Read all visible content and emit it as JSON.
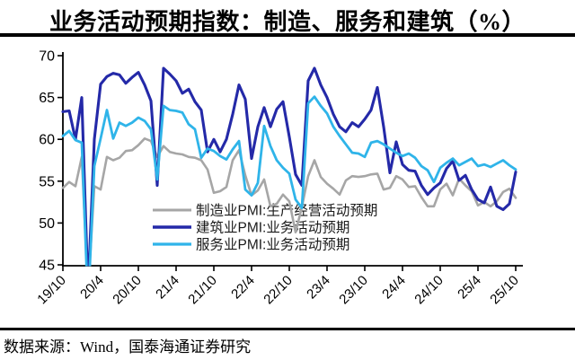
{
  "page": {
    "title": "业务活动预期指数：制造、服务和建筑（%）",
    "source": "数据来源：Wind，国泰海通证券研究"
  },
  "chart_data": {
    "type": "line",
    "title": "业务活动预期指数：制造、服务和建筑（%）",
    "x_start": "2019-10",
    "x_end": "2025-10",
    "x_frequency": "monthly",
    "x_tick_labels": [
      "19/10",
      "20/4",
      "20/10",
      "21/4",
      "21/10",
      "22/4",
      "22/10",
      "23/4",
      "23/10",
      "24/4",
      "24/10",
      "25/4",
      "25/10"
    ],
    "y_ticks": [
      70,
      65,
      60,
      55,
      50,
      45
    ],
    "ylim": [
      45,
      70
    ],
    "grid": false,
    "legend_position": "inside-center-left",
    "axis_color": "#000000",
    "series": [
      {
        "id": "manufacturing",
        "label": "制造业PMI:生产经营活动预期",
        "color": "#A6A6A6",
        "stroke_width": 2.6,
        "values": [
          54.2,
          54.9,
          54.4,
          57.9,
          41.8,
          54.4,
          54.0,
          57.9,
          57.5,
          57.8,
          58.6,
          58.7,
          59.3,
          60.1,
          59.8,
          57.9,
          59.2,
          58.5,
          58.3,
          58.2,
          57.9,
          57.8,
          57.5,
          56.4,
          53.6,
          53.8,
          54.3,
          57.5,
          58.7,
          55.7,
          53.3,
          53.9,
          55.2,
          52.0,
          52.3,
          53.4,
          52.6,
          48.9,
          51.9,
          55.6,
          57.5,
          55.5,
          54.7,
          54.1,
          53.4,
          55.1,
          55.6,
          55.5,
          55.6,
          55.8,
          55.9,
          54.0,
          54.2,
          55.6,
          55.2,
          54.3,
          54.4,
          53.1,
          52.0,
          52.0,
          54.0,
          54.7,
          53.3,
          55.3,
          54.5,
          53.8,
          52.1,
          52.5,
          52.0,
          52.6,
          53.7,
          54.1,
          53.0
        ]
      },
      {
        "id": "construction",
        "label": "建筑业PMI:业务活动预期",
        "color": "#2429A8",
        "stroke_width": 3.1,
        "values": [
          63.3,
          63.4,
          60.0,
          65.0,
          41.8,
          60.0,
          66.6,
          67.5,
          67.9,
          67.7,
          66.7,
          67.4,
          68.0,
          66.5,
          64.6,
          54.5,
          68.5,
          67.8,
          67.0,
          65.5,
          66.0,
          64.5,
          63.5,
          58.5,
          60.0,
          58.5,
          60.0,
          63.0,
          66.5,
          64.8,
          57.7,
          61.5,
          63.8,
          61.5,
          63.6,
          64.5,
          60.3,
          55.8,
          54.5,
          67.0,
          68.5,
          66.5,
          65.0,
          63.0,
          61.5,
          60.9,
          62.0,
          61.5,
          62.4,
          63.5,
          66.2,
          61.5,
          56.0,
          59.7,
          57.0,
          56.3,
          56.2,
          54.5,
          53.4,
          54.2,
          54.8,
          56.5,
          57.4,
          55.1,
          55.7,
          54.0,
          52.8,
          52.4,
          54.3,
          52.0,
          51.6,
          52.3,
          56.1
        ]
      },
      {
        "id": "services",
        "label": "服务业PMI:业务活动预期",
        "color": "#2FB4E9",
        "stroke_width": 2.8,
        "values": [
          60.4,
          61.0,
          59.9,
          59.6,
          40.0,
          56.8,
          60.1,
          63.5,
          60.1,
          62.0,
          61.6,
          62.0,
          62.6,
          62.2,
          61.2,
          55.2,
          64.0,
          63.5,
          63.4,
          63.2,
          61.8,
          61.2,
          57.8,
          58.9,
          58.6,
          58.0,
          57.6,
          58.8,
          59.8,
          54.0,
          53.3,
          54.8,
          61.6,
          59.2,
          57.5,
          56.6,
          55.9,
          52.8,
          51.8,
          64.3,
          65.1,
          64.0,
          63.1,
          61.5,
          60.4,
          59.4,
          58.4,
          58.3,
          57.9,
          59.6,
          59.8,
          59.4,
          58.9,
          58.4,
          58.0,
          58.3,
          57.8,
          56.8,
          56.3,
          54.9,
          56.6,
          57.2,
          57.7,
          56.9,
          57.3,
          57.7,
          56.8,
          57.0,
          56.7,
          57.1,
          57.5,
          56.9,
          56.4
        ]
      }
    ]
  }
}
